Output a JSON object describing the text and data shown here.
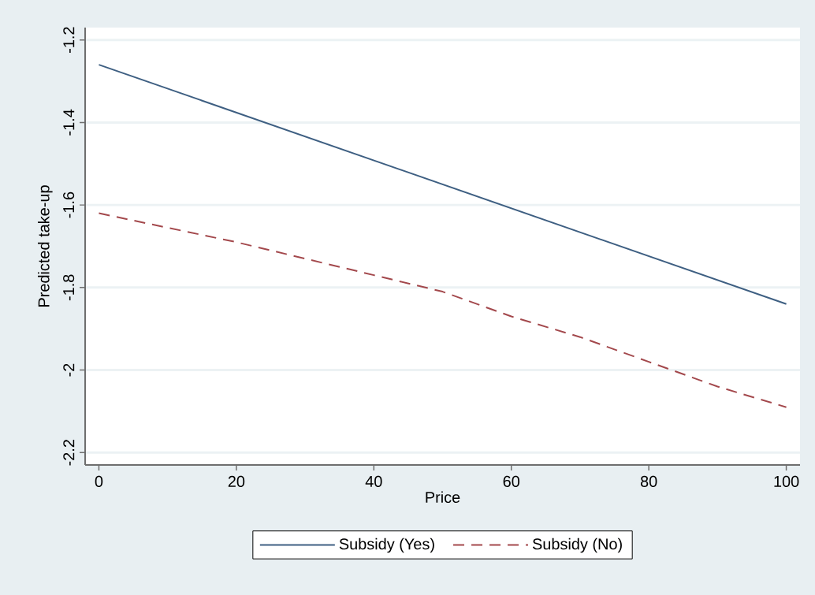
{
  "chart_data": {
    "type": "line",
    "xlabel": "Price",
    "ylabel": "Predicted take-up",
    "x": [
      0,
      10,
      20,
      30,
      40,
      50,
      60,
      70,
      80,
      90,
      100
    ],
    "series": [
      {
        "name": "Subsidy (Yes)",
        "color": "#3e5f82",
        "line_style": "solid",
        "x": [
          0,
          100
        ],
        "values": [
          -1.26,
          -1.84
        ]
      },
      {
        "name": "Subsidy (No)",
        "color": "#a3484c",
        "line_style": "dashed",
        "values": [
          -1.62,
          -1.655,
          -1.69,
          -1.73,
          -1.77,
          -1.81,
          -1.87,
          -1.92,
          -1.98,
          -2.04,
          -2.09
        ]
      }
    ],
    "xlim": [
      -2,
      102
    ],
    "ylim": [
      -2.23,
      -1.17
    ],
    "xticks": [
      0,
      20,
      40,
      60,
      80,
      100
    ],
    "yticks": [
      -2.2,
      -2,
      -1.8,
      -1.6,
      -1.4,
      -1.2
    ],
    "grid": "y",
    "legend": "bottom",
    "marker": "none"
  }
}
